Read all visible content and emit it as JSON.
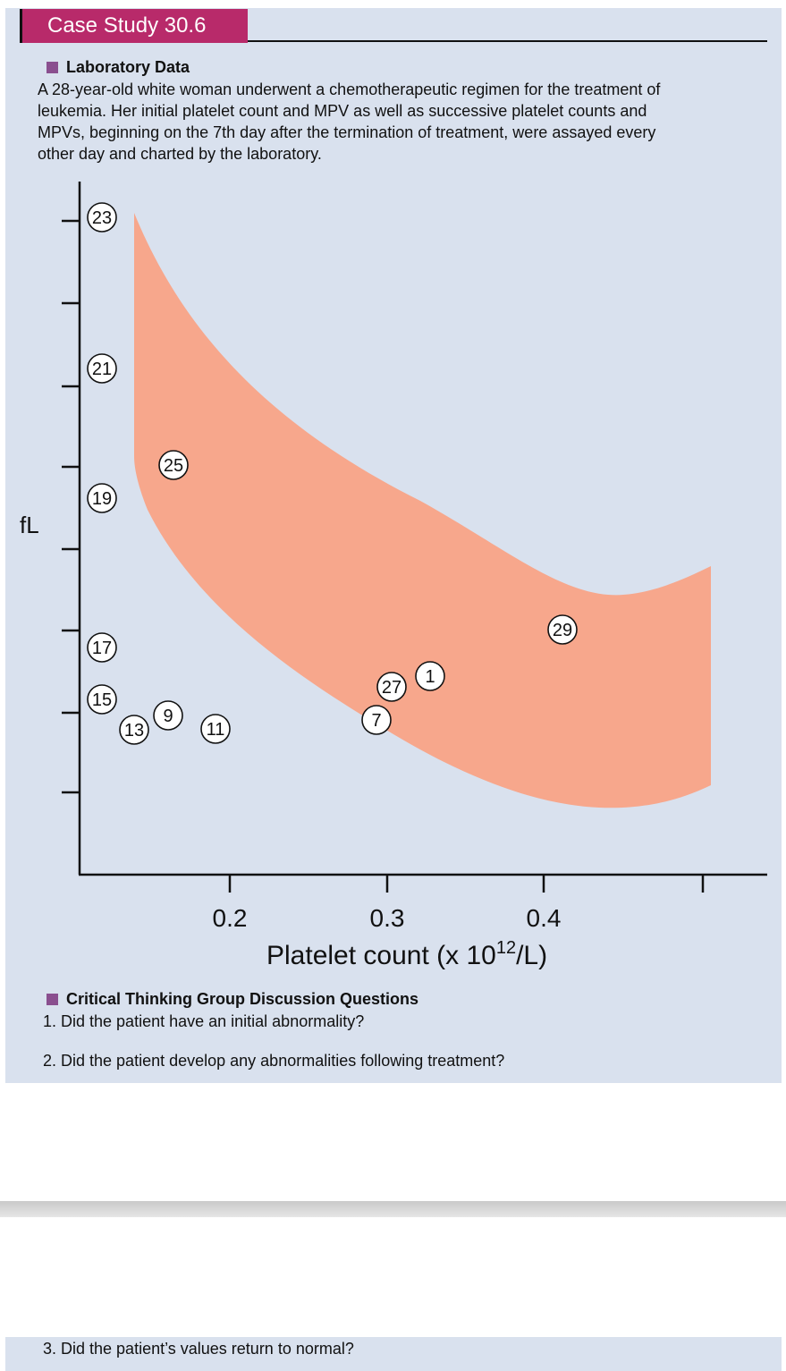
{
  "header": {
    "title": "Case Study 30.6"
  },
  "lab": {
    "title": "Laboratory Data",
    "lines": [
      "A 28-year-old white woman underwent a chemotherapeutic regimen for the treatment of",
      "leukemia. Her initial platelet count and MPV as well as successive platelet counts and",
      "MPVs, beginning on the 7th day after the termination of treatment, were assayed every",
      "other day and charted by the laboratory."
    ]
  },
  "chart_data": {
    "type": "scatter",
    "ylabel": "fL",
    "xlabel_base": "Platelet count (x 10",
    "xlabel_sup": "12",
    "xlabel_tail": "/L)",
    "x_ticks": [
      "0.2",
      "0.3",
      "0.4"
    ],
    "normal_range_band": true,
    "points": [
      {
        "label": "23",
        "x": 0.12,
        "y": 23
      },
      {
        "label": "21",
        "x": 0.12,
        "y": 21
      },
      {
        "label": "19",
        "x": 0.12,
        "y": 19
      },
      {
        "label": "17",
        "x": 0.12,
        "y": 17
      },
      {
        "label": "15",
        "x": 0.12,
        "y": 15
      },
      {
        "label": "13",
        "x": 0.14,
        "y": 14.5
      },
      {
        "label": "9",
        "x": 0.17,
        "y": 14.8
      },
      {
        "label": "11",
        "x": 0.19,
        "y": 14.6
      },
      {
        "label": "25",
        "x": 0.17,
        "y": 19.5
      },
      {
        "label": "7",
        "x": 0.295,
        "y": 14.7
      },
      {
        "label": "27",
        "x": 0.305,
        "y": 15.5
      },
      {
        "label": "1",
        "x": 0.325,
        "y": 15.9
      },
      {
        "label": "29",
        "x": 0.41,
        "y": 17.1
      }
    ]
  },
  "questions": {
    "title": "Critical Thinking Group Discussion Questions",
    "q1": "1.  Did the patient have an initial abnormality?",
    "q2": "2.  Did the patient develop any abnormalities following treatment?",
    "q3": "3.  Did the patient’s values return to normal?"
  }
}
